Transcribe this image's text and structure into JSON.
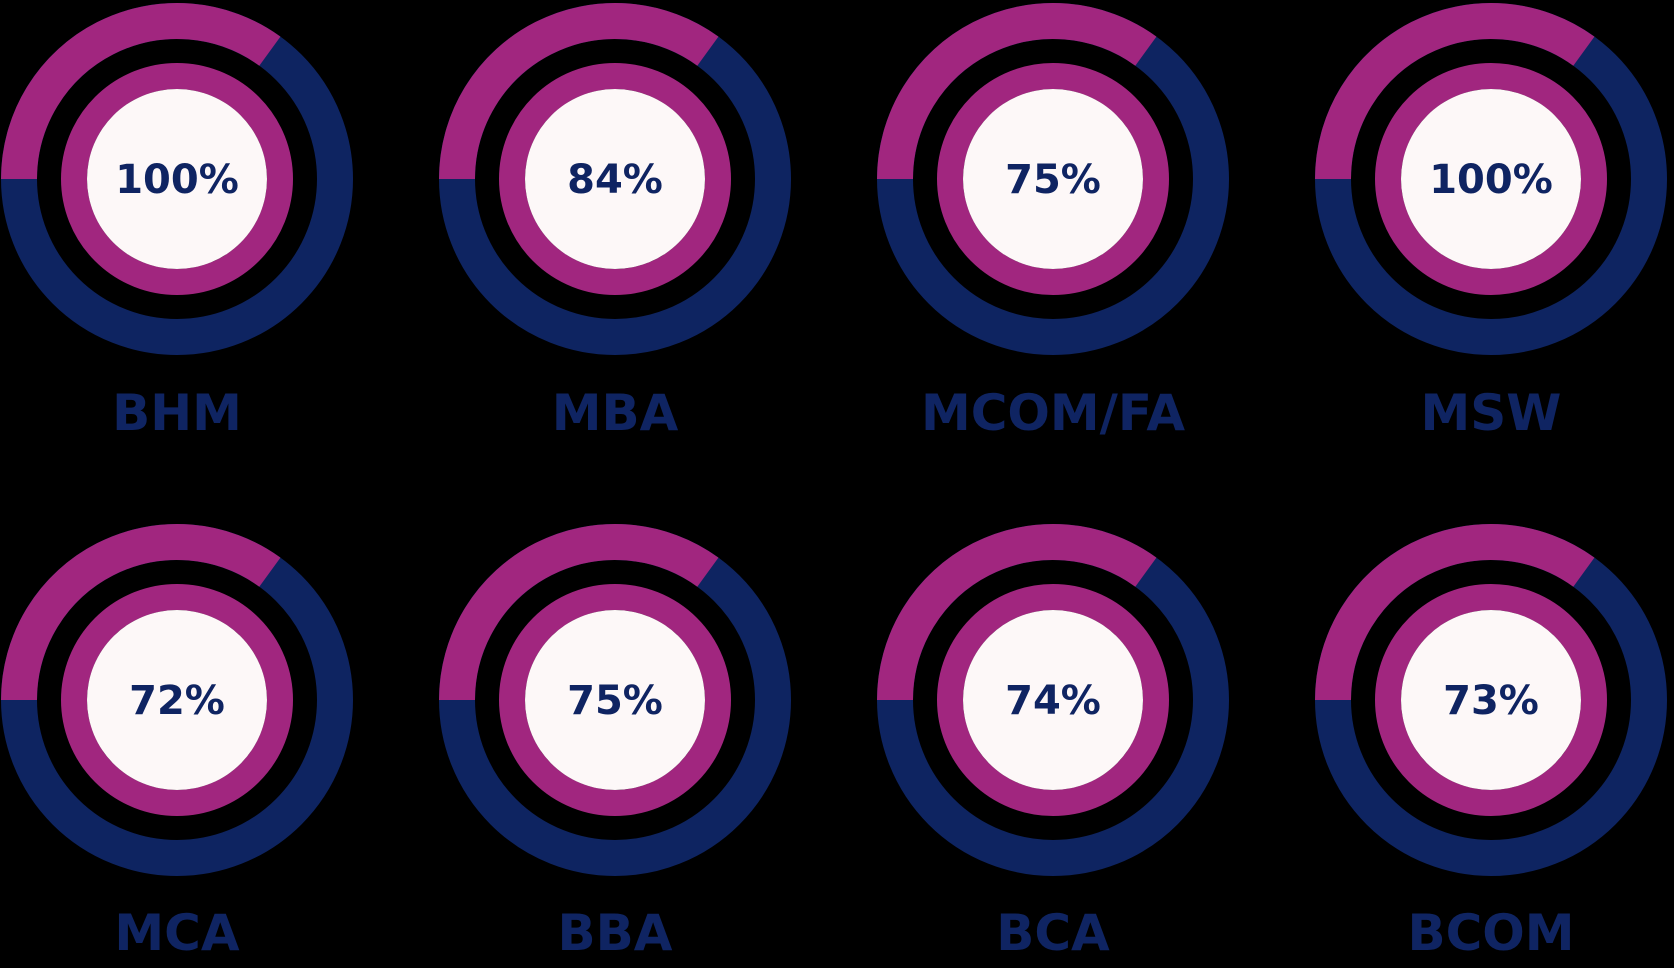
{
  "colors": {
    "magenta": "#a1267f",
    "navy": "#0e2461",
    "center": "#fdf8f8",
    "text": "#0f2462",
    "background": "#000000"
  },
  "chart_data": {
    "type": "donut-grid",
    "items": [
      {
        "label": "BHM",
        "value": 100,
        "display": "100%"
      },
      {
        "label": "MBA",
        "value": 84,
        "display": "84%"
      },
      {
        "label": "MCOM/FA",
        "value": 75,
        "display": "75%"
      },
      {
        "label": "MSW",
        "value": 100,
        "display": "100%"
      },
      {
        "label": "MCA",
        "value": 72,
        "display": "72%"
      },
      {
        "label": "BBA",
        "value": 75,
        "display": "75%"
      },
      {
        "label": "BCA",
        "value": 74,
        "display": "74%"
      },
      {
        "label": "BCOM",
        "value": 73,
        "display": "73%"
      }
    ]
  }
}
